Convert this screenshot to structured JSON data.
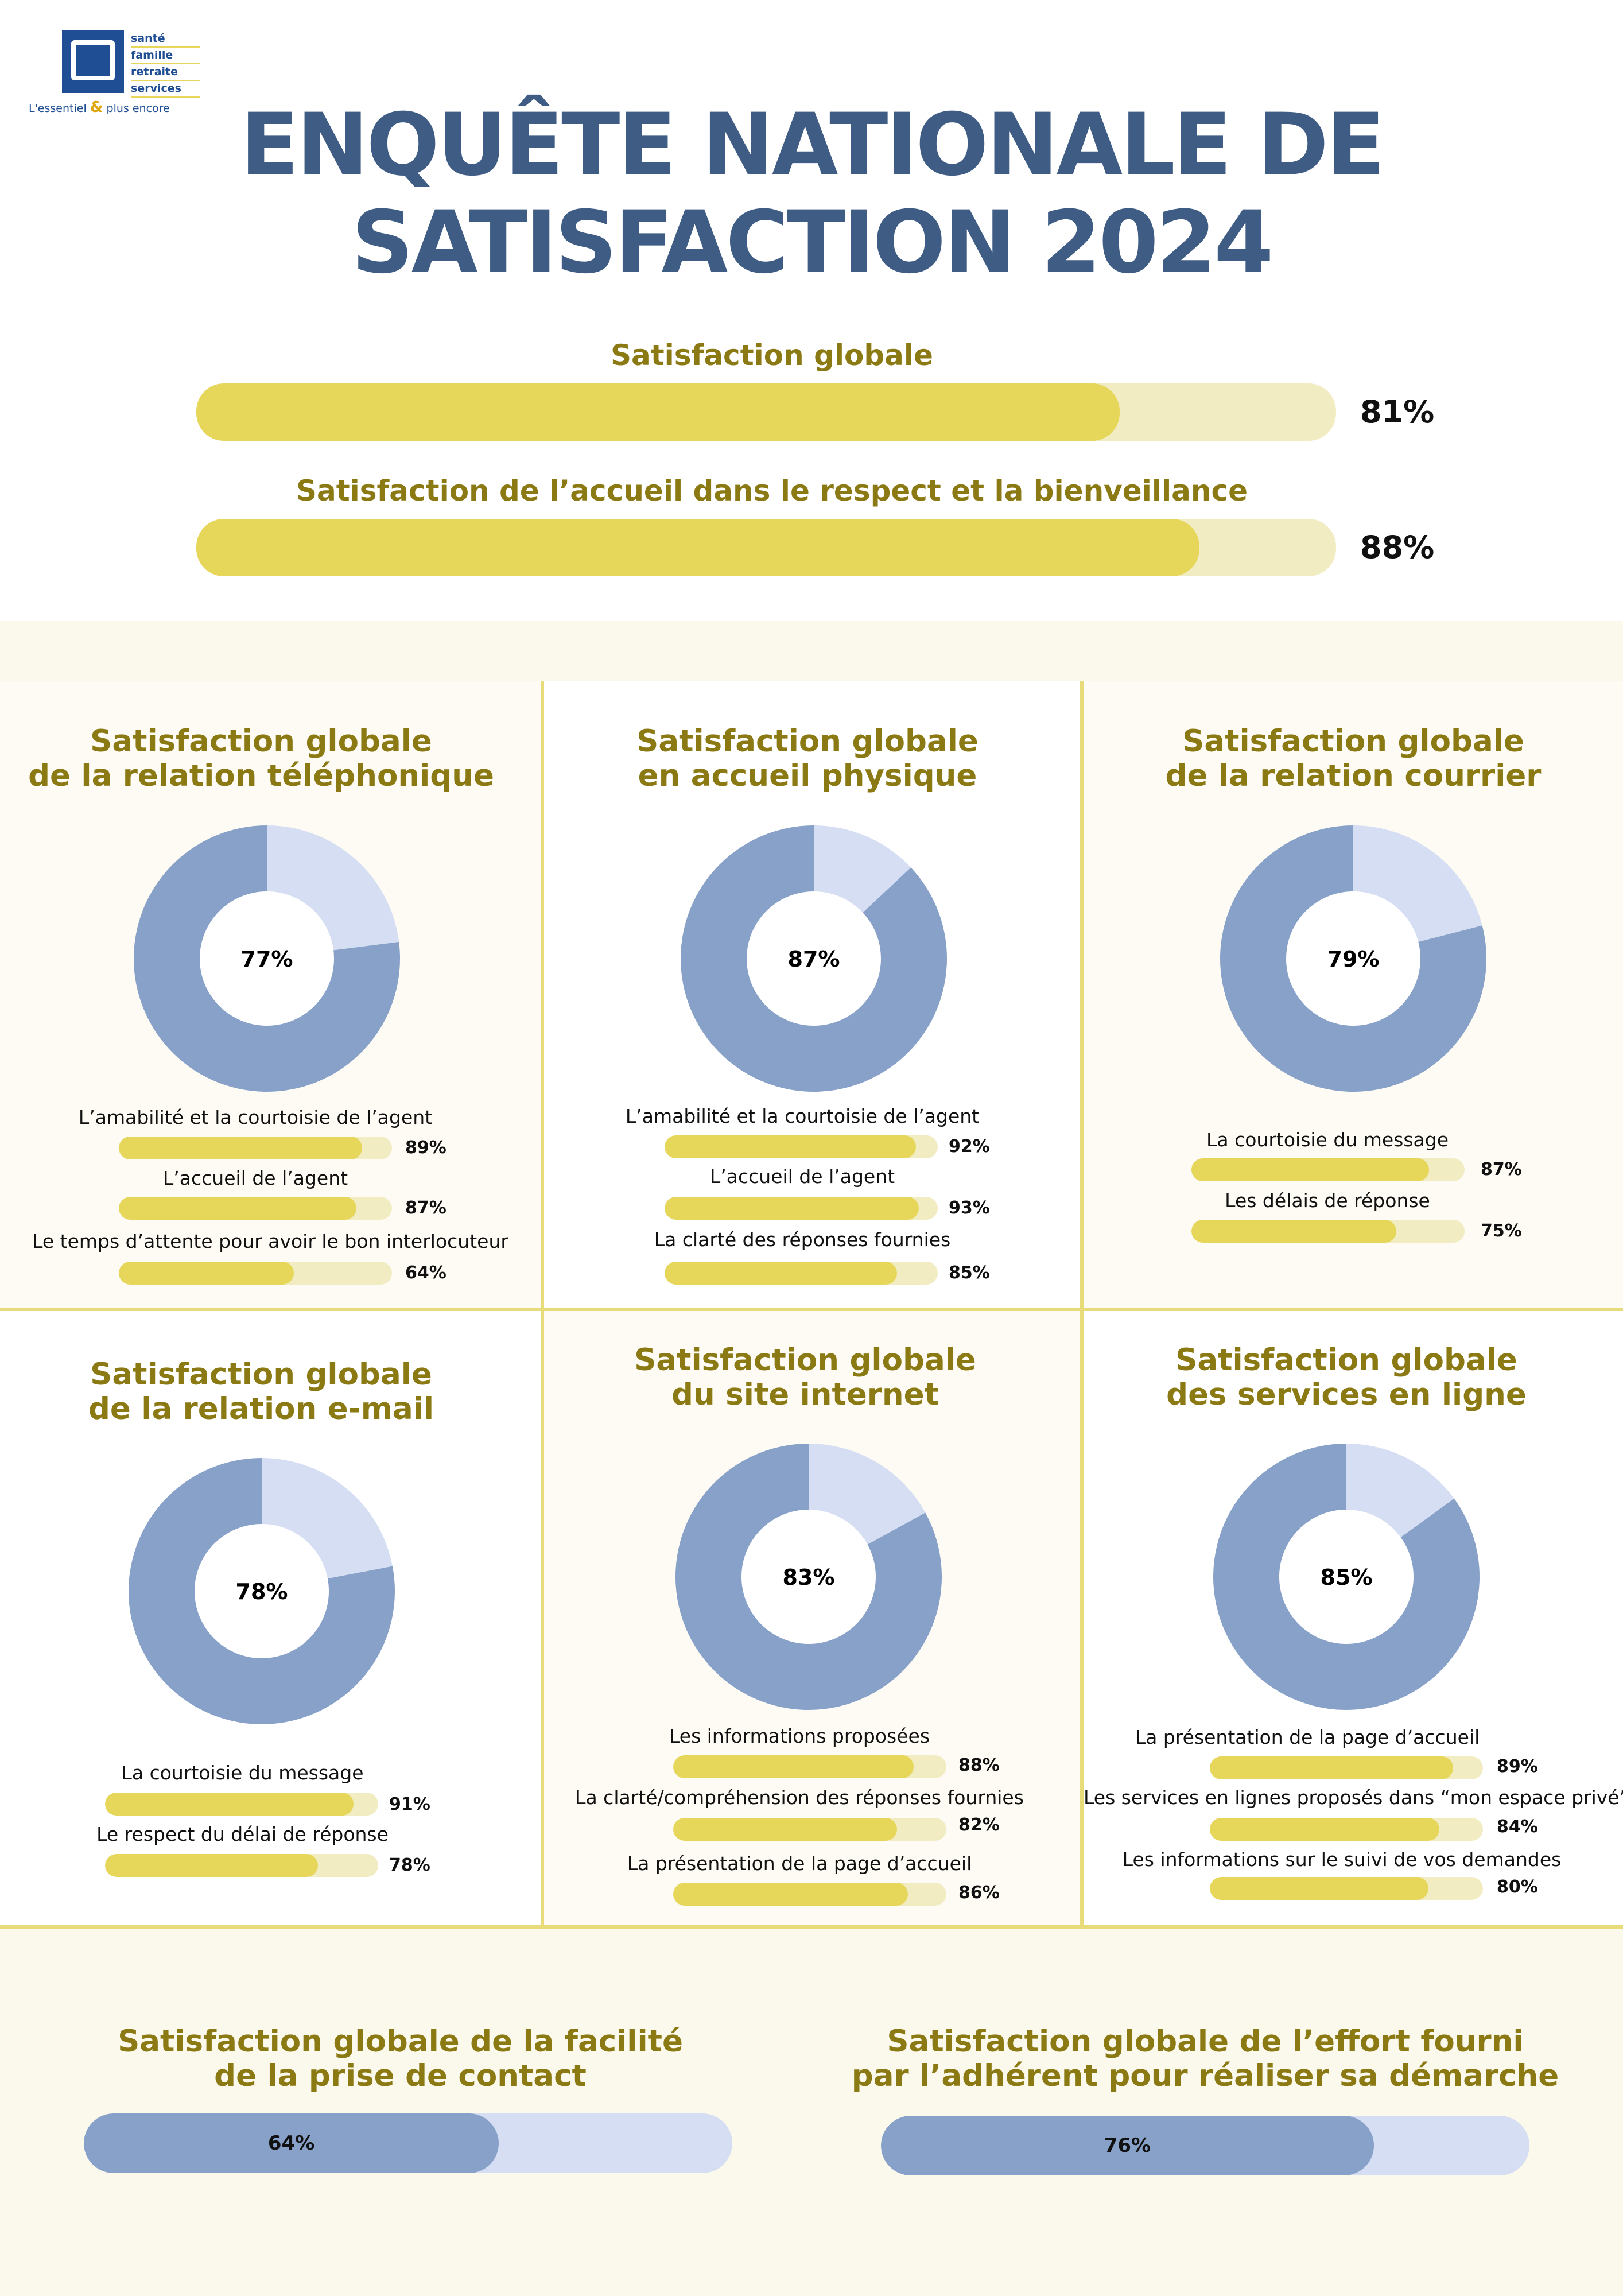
{
  "logo": {
    "lines": [
      "santé",
      "famille",
      "retraite",
      "services"
    ],
    "tagline_left": "L'essentiel",
    "tagline_amp": "&",
    "tagline_right": "plus encore"
  },
  "title": {
    "line1": "ENQUÊTE NATIONALE DE",
    "line2": "SATISFACTION 2024"
  },
  "colors": {
    "title": "#3e5c84",
    "heading": "#8b7a14",
    "bar_fill": "#e6d65a",
    "bar_track": "#f2ecc3",
    "donut_main": "#88a1c9",
    "donut_rest": "#d5def3",
    "panel_bg": "#fdfbf3",
    "band_bg": "#fbf8ec",
    "divider": "#e8dc7a"
  },
  "chart_data": [
    {
      "type": "bar",
      "id": "top",
      "items": [
        {
          "label": "Satisfaction globale",
          "value": 81,
          "text": "81%"
        },
        {
          "label": "Satisfaction de l’accueil dans le respect et la bienveillance",
          "value": 88,
          "text": "88%"
        }
      ]
    },
    {
      "type": "pie",
      "id": "telephone",
      "title_line1": "Satisfaction globale",
      "title_line2": "de la relation téléphonique",
      "value": 77,
      "center_text": "77%",
      "details": [
        {
          "label": "L’amabilité et la courtoisie de l’agent",
          "value": 89,
          "text": "89%"
        },
        {
          "label": "L’accueil de l’agent",
          "value": 87,
          "text": "87%"
        },
        {
          "label": "Le temps d’attente pour avoir le bon interlocuteur",
          "value": 64,
          "text": "64%"
        }
      ]
    },
    {
      "type": "pie",
      "id": "physique",
      "title_line1": "Satisfaction globale",
      "title_line2": "en accueil physique",
      "value": 87,
      "center_text": "87%",
      "details": [
        {
          "label": "L’amabilité et la courtoisie de l’agent",
          "value": 92,
          "text": "92%"
        },
        {
          "label": "L’accueil de l’agent",
          "value": 93,
          "text": "93%"
        },
        {
          "label": "La clarté des réponses fournies",
          "value": 85,
          "text": "85%"
        }
      ]
    },
    {
      "type": "pie",
      "id": "courrier",
      "title_line1": "Satisfaction globale",
      "title_line2": "de la relation courrier",
      "value": 79,
      "center_text": "79%",
      "details": [
        {
          "label": "La courtoisie du message",
          "value": 87,
          "text": "87%"
        },
        {
          "label": "Les délais de réponse",
          "value": 75,
          "text": "75%"
        }
      ]
    },
    {
      "type": "pie",
      "id": "email",
      "title_line1": "Satisfaction globale",
      "title_line2": "de la relation e-mail",
      "value": 78,
      "center_text": "78%",
      "details": [
        {
          "label": "La courtoisie du message",
          "value": 91,
          "text": "91%"
        },
        {
          "label": "Le respect du délai de réponse",
          "value": 78,
          "text": "78%"
        }
      ]
    },
    {
      "type": "pie",
      "id": "site",
      "title_line1": "Satisfaction globale",
      "title_line2": "du site internet",
      "value": 83,
      "center_text": "83%",
      "details": [
        {
          "label": "Les informations proposées",
          "value": 88,
          "text": "88%"
        },
        {
          "label": "La clarté/compréhension des réponses fournies",
          "value": 82,
          "text": "82%"
        },
        {
          "label": "La présentation de la page d’accueil",
          "value": 86,
          "text": "86%"
        }
      ]
    },
    {
      "type": "pie",
      "id": "services",
      "title_line1": "Satisfaction globale",
      "title_line2": "des services en ligne",
      "value": 85,
      "center_text": "85%",
      "details": [
        {
          "label": "La présentation de la page d’accueil",
          "value": 89,
          "text": "89%"
        },
        {
          "label": "Les services en lignes proposés dans “mon espace privé”",
          "value": 84,
          "text": "84%"
        },
        {
          "label": "Les informations sur le suivi de vos demandes",
          "value": 80,
          "text": "80%"
        }
      ]
    },
    {
      "type": "bar",
      "id": "bottom",
      "items": [
        {
          "title_line1": "Satisfaction globale de la facilité",
          "title_line2": "de la prise de contact",
          "value": 64,
          "text": "64%"
        },
        {
          "title_line1": "Satisfaction globale de l’effort fourni",
          "title_line2": "par l’adhérent pour réaliser sa démarche",
          "value": 76,
          "text": "76%"
        }
      ]
    }
  ]
}
